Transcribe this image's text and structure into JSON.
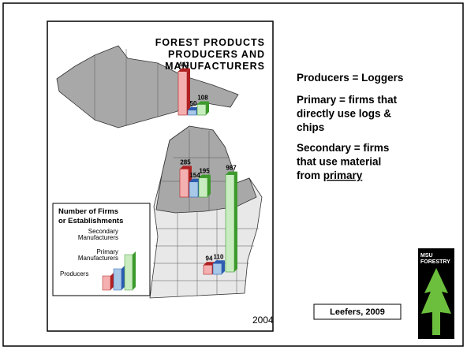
{
  "map": {
    "title_lines": [
      "FOREST PRODUCTS",
      "PRODUCERS AND",
      "MANUFACTURERS"
    ],
    "year": "2004",
    "legend": {
      "title_lines": [
        "Number of Firms",
        "or Establishments"
      ],
      "items": [
        {
          "lines": [
            "Secondary",
            "Manufacturers"
          ],
          "color": "#c8ecc0",
          "side": "#3c9a2c"
        },
        {
          "lines": [
            "Primary",
            "Manufacturers"
          ],
          "color": "#a8c8e8",
          "side": "#2c5cb0"
        },
        {
          "lines": [
            "Producers"
          ],
          "color": "#f4b0b0",
          "side": "#b02020"
        }
      ]
    },
    "regions": [
      {
        "values": [
          443,
          50,
          108
        ]
      },
      {
        "values": [
          285,
          154,
          195
        ]
      },
      {
        "values": [
          94,
          110,
          987
        ]
      }
    ]
  },
  "notes": [
    {
      "lines": [
        "Producers = Loggers"
      ]
    },
    {
      "lines": [
        "Primary = firms that",
        "directly use logs &",
        "chips"
      ]
    },
    {
      "lines": [
        "Secondary = firms",
        "that use material",
        "from "
      ],
      "underlined": "primary"
    }
  ],
  "citation": "Leefers, 2009",
  "logo": [
    "MSU",
    "FORESTRY"
  ]
}
